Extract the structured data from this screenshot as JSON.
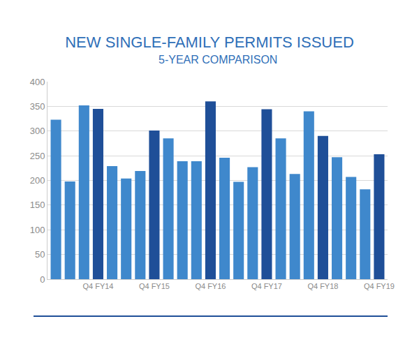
{
  "chart_data": {
    "type": "bar",
    "title": "NEW SINGLE-FAMILY PERMITS ISSUED",
    "subtitle": "5-YEAR COMPARISON",
    "categories": [
      null,
      null,
      null,
      "Q4 FY14",
      null,
      null,
      null,
      "Q4 FY15",
      null,
      null,
      null,
      "Q4 FY16",
      null,
      null,
      null,
      "Q4 FY17",
      null,
      null,
      null,
      "Q4 FY18",
      null,
      null,
      null,
      "Q4 FY19"
    ],
    "values": [
      323,
      198,
      352,
      345,
      229,
      204,
      219,
      301,
      285,
      239,
      239,
      360,
      246,
      197,
      227,
      344,
      285,
      213,
      340,
      290,
      247,
      207,
      182,
      253
    ],
    "colors": [
      "#3f88cc",
      "#3f88cc",
      "#3f88cc",
      "#1f4f98",
      "#3f88cc",
      "#3f88cc",
      "#3f88cc",
      "#1f4f98",
      "#3f88cc",
      "#3f88cc",
      "#3f88cc",
      "#1f4f98",
      "#3f88cc",
      "#3f88cc",
      "#3f88cc",
      "#1f4f98",
      "#3f88cc",
      "#3f88cc",
      "#3f88cc",
      "#1f4f98",
      "#3f88cc",
      "#3f88cc",
      "#3f88cc",
      "#1f4f98"
    ],
    "ylim": [
      0,
      400
    ],
    "yticks": [
      0,
      50,
      100,
      150,
      200,
      250,
      300,
      350,
      400
    ],
    "grid": true
  }
}
